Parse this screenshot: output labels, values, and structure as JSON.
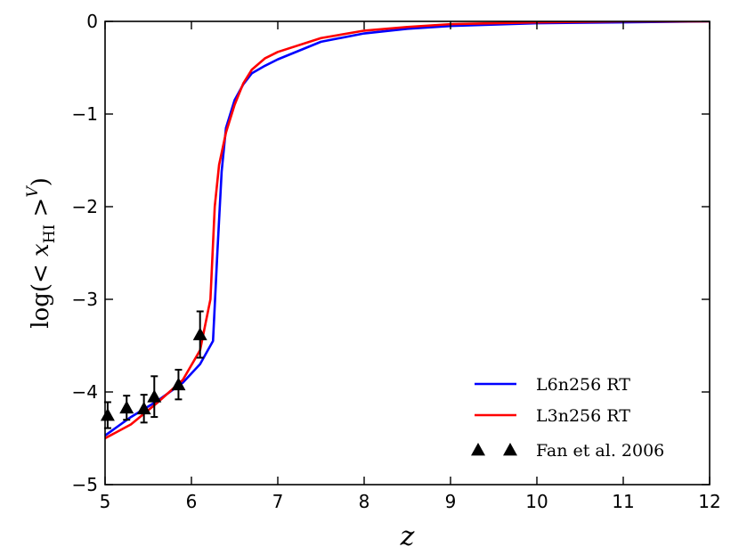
{
  "chart_data": {
    "type": "line",
    "title": "",
    "xlabel": "z",
    "ylabel": "log(< x_HI >^V)",
    "xlim": [
      5,
      12
    ],
    "ylim": [
      -5,
      0
    ],
    "x_ticks": [
      "5",
      "6",
      "7",
      "8",
      "9",
      "10",
      "11",
      "12"
    ],
    "y_ticks": [
      "0",
      "−1",
      "−2",
      "−3",
      "−4",
      "−5"
    ],
    "grid": false,
    "legend_position": "lower-right",
    "series": [
      {
        "name": "L6n256 RT",
        "color": "#0000ff",
        "x": [
          5.0,
          5.3,
          5.6,
          5.9,
          6.1,
          6.25,
          6.3,
          6.35,
          6.4,
          6.5,
          6.6,
          6.7,
          6.85,
          7.0,
          7.5,
          8.0,
          8.5,
          9.0,
          10.0,
          11.0,
          12.0
        ],
        "y": [
          -4.47,
          -4.27,
          -4.1,
          -3.9,
          -3.7,
          -3.45,
          -2.5,
          -1.62,
          -1.15,
          -0.85,
          -0.68,
          -0.56,
          -0.48,
          -0.41,
          -0.22,
          -0.13,
          -0.08,
          -0.05,
          -0.02,
          -0.01,
          0.0
        ]
      },
      {
        "name": "L3n256 RT",
        "color": "#ff0000",
        "x": [
          5.0,
          5.3,
          5.6,
          5.9,
          6.1,
          6.22,
          6.27,
          6.32,
          6.4,
          6.5,
          6.6,
          6.7,
          6.85,
          7.0,
          7.5,
          8.0,
          8.5,
          9.0,
          10.0,
          11.0,
          12.0
        ],
        "y": [
          -4.5,
          -4.35,
          -4.12,
          -3.87,
          -3.55,
          -3.0,
          -2.0,
          -1.55,
          -1.2,
          -0.9,
          -0.67,
          -0.52,
          -0.4,
          -0.33,
          -0.18,
          -0.1,
          -0.06,
          -0.03,
          -0.01,
          0.0,
          0.0
        ]
      },
      {
        "name": "Fan et al. 2006",
        "color": "#000000",
        "marker": "triangle",
        "x": [
          5.03,
          5.25,
          5.45,
          5.57,
          5.85,
          6.1
        ],
        "y": [
          -4.25,
          -4.17,
          -4.18,
          -4.05,
          -3.92,
          -3.38
        ],
        "yerr": [
          0.14,
          0.13,
          0.15,
          0.22,
          0.16,
          0.25
        ]
      }
    ]
  }
}
